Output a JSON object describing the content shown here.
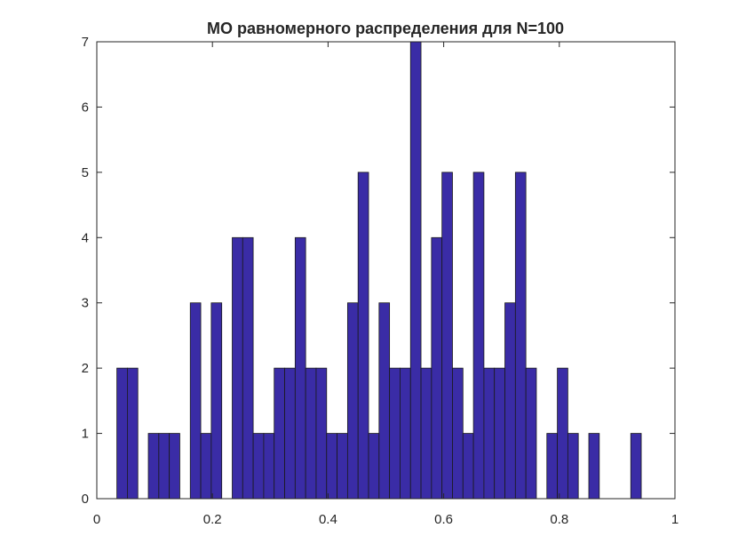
{
  "chart_data": {
    "type": "bar",
    "title": "МО равномерного распределения для N=100",
    "xlabel": "",
    "ylabel": "",
    "xlim": [
      0,
      1
    ],
    "ylim": [
      0,
      7
    ],
    "xticks": [
      "0",
      "0.2",
      "0.4",
      "0.6",
      "0.8",
      "1"
    ],
    "yticks": [
      "0",
      "1",
      "2",
      "3",
      "4",
      "5",
      "6",
      "7"
    ],
    "grid": false,
    "colors": {
      "bar_fill": "#3a2ca6",
      "bar_edge": "#1a1a1a",
      "axis": "#262626"
    },
    "bins": {
      "start": 0.0347,
      "width": 0.01814
    },
    "values": [
      2,
      2,
      0,
      1,
      1,
      1,
      0,
      3,
      1,
      3,
      0,
      4,
      4,
      1,
      1,
      2,
      2,
      4,
      2,
      2,
      1,
      1,
      3,
      5,
      1,
      3,
      2,
      2,
      7,
      2,
      4,
      5,
      2,
      1,
      5,
      2,
      2,
      3,
      5,
      2,
      0,
      1,
      2,
      1,
      0,
      1,
      0,
      0,
      0,
      1
    ]
  }
}
